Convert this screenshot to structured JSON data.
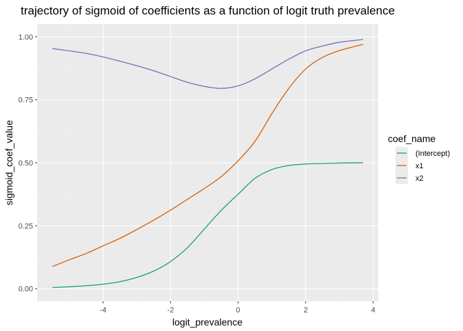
{
  "chart_data": {
    "type": "line",
    "title": "trajectory of sigmoid of coefficients as a function of logit truth prevalence",
    "xlabel": "logit_prevalence",
    "ylabel": "sigmoid_coef_value",
    "xlim": [
      -5.95,
      4.15
    ],
    "ylim": [
      -0.05,
      1.05
    ],
    "xticks": [
      -4,
      -2,
      0,
      2,
      4
    ],
    "xtick_labels": [
      "-4",
      "-2",
      "0",
      "2",
      "4"
    ],
    "yticks": [
      0,
      0.25,
      0.5,
      0.75,
      1
    ],
    "ytick_labels": [
      "0.00",
      "0.25",
      "0.50",
      "0.75",
      "1.00"
    ],
    "grid": true,
    "legend": {
      "title": "coef_name",
      "position": "right"
    },
    "colors": {
      "panel": "#ebebeb",
      "grid_major": "#ffffff",
      "grid_minor": "#f2f2f2"
    },
    "series": [
      {
        "name": "(Intercept)",
        "color": "#1b9e77",
        "x": [
          -5.5,
          -5.0,
          -4.5,
          -4.0,
          -3.5,
          -3.0,
          -2.5,
          -2.0,
          -1.5,
          -1.0,
          -0.5,
          0.0,
          0.5,
          1.0,
          1.5,
          2.0,
          2.5,
          3.0,
          3.7
        ],
        "y": [
          0.005,
          0.008,
          0.012,
          0.018,
          0.028,
          0.045,
          0.07,
          0.108,
          0.163,
          0.237,
          0.311,
          0.375,
          0.438,
          0.473,
          0.489,
          0.495,
          0.497,
          0.499,
          0.5
        ]
      },
      {
        "name": "x1",
        "color": "#d95f02",
        "x": [
          -5.5,
          -5.0,
          -4.5,
          -4.0,
          -3.5,
          -3.0,
          -2.5,
          -2.0,
          -1.5,
          -1.0,
          -0.5,
          0.0,
          0.5,
          1.0,
          1.5,
          2.0,
          2.5,
          3.0,
          3.7
        ],
        "y": [
          0.088,
          0.115,
          0.14,
          0.17,
          0.2,
          0.235,
          0.272,
          0.312,
          0.355,
          0.398,
          0.445,
          0.508,
          0.585,
          0.695,
          0.795,
          0.872,
          0.918,
          0.945,
          0.97
        ]
      },
      {
        "name": "x2",
        "color": "#7570b3",
        "x": [
          -5.5,
          -5.0,
          -4.5,
          -4.0,
          -3.5,
          -3.0,
          -2.5,
          -2.0,
          -1.5,
          -1.0,
          -0.5,
          0.0,
          0.5,
          1.0,
          1.5,
          2.0,
          2.5,
          3.0,
          3.7
        ],
        "y": [
          0.953,
          0.944,
          0.934,
          0.92,
          0.903,
          0.885,
          0.865,
          0.842,
          0.819,
          0.803,
          0.795,
          0.805,
          0.833,
          0.872,
          0.911,
          0.944,
          0.963,
          0.978,
          0.989
        ]
      }
    ]
  }
}
